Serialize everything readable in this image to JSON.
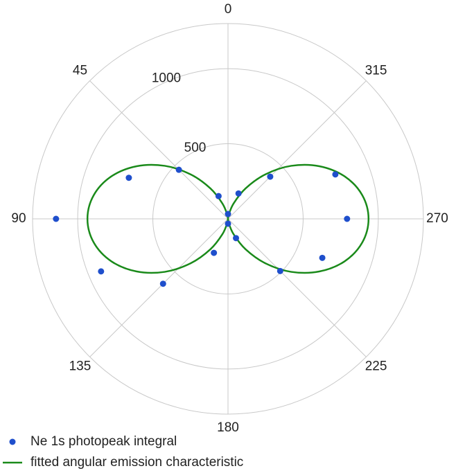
{
  "chart_data": {
    "type": "polar",
    "theta_direction": "counterclockwise",
    "theta_zero": "top",
    "rlim": [
      0,
      1300
    ],
    "rticks": [
      500,
      1000
    ],
    "thetaticks": [
      0,
      45,
      90,
      135,
      180,
      225,
      270,
      315
    ],
    "grid": true,
    "legend": "bottom-left",
    "series": [
      {
        "name": "Ne 1s photopeak integral",
        "kind": "scatter",
        "color": "#1f4fcc",
        "theta": [
          0,
          22.5,
          45,
          67.5,
          90,
          112.5,
          135,
          157.5,
          180,
          202.5,
          225,
          247.5,
          270,
          292.5,
          315,
          337.5
        ],
        "values": [
          32,
          164,
          462,
          714,
          1144,
          914,
          611,
          245,
          32,
          139,
          491,
          679,
          792,
          773,
          397,
          183
        ]
      },
      {
        "name": "fitted angular emission characteristic",
        "kind": "line",
        "color": "#1a8a1a",
        "theta": [
          0,
          10,
          20,
          30,
          40,
          50,
          60,
          70,
          80,
          90,
          100,
          110,
          120,
          130,
          140,
          150,
          160,
          170,
          180,
          190,
          200,
          210,
          220,
          230,
          240,
          250,
          260,
          270,
          280,
          290,
          300,
          310,
          320,
          330,
          340,
          350,
          360
        ],
        "values": [
          0,
          28,
          109,
          234,
          386,
          549,
          701,
          826,
          907,
          935,
          907,
          826,
          701,
          549,
          386,
          234,
          109,
          28,
          0,
          28,
          109,
          234,
          386,
          549,
          701,
          826,
          907,
          935,
          907,
          826,
          701,
          549,
          386,
          234,
          109,
          28,
          0
        ]
      }
    ]
  }
}
